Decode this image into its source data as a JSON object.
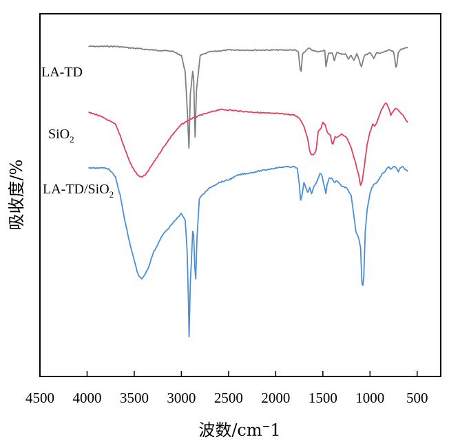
{
  "chart_data": {
    "type": "line",
    "title": "",
    "xlabel": "波数/cm⁻1",
    "ylabel": "吸收度/%",
    "xlim": [
      4500,
      250
    ],
    "x_reversed": true,
    "y_ticks_shown": false,
    "grid": false,
    "legend": "inline labels at left of each curve",
    "xticks": [
      4500,
      4000,
      3500,
      3000,
      2500,
      2000,
      1500,
      1000,
      500
    ],
    "series": [
      {
        "name": "LA-TD",
        "color": "#7f7f7f",
        "points": [
          [
            3985,
            0.91
          ],
          [
            3700,
            0.91
          ],
          [
            3500,
            0.905
          ],
          [
            3300,
            0.9
          ],
          [
            3100,
            0.897
          ],
          [
            3000,
            0.885
          ],
          [
            2960,
            0.84
          ],
          [
            2935,
            0.72
          ],
          [
            2920,
            0.63
          ],
          [
            2905,
            0.78
          ],
          [
            2880,
            0.84
          ],
          [
            2870,
            0.82
          ],
          [
            2855,
            0.66
          ],
          [
            2840,
            0.79
          ],
          [
            2800,
            0.885
          ],
          [
            2700,
            0.895
          ],
          [
            2500,
            0.9
          ],
          [
            2300,
            0.9
          ],
          [
            2100,
            0.9
          ],
          [
            1900,
            0.9
          ],
          [
            1800,
            0.9
          ],
          [
            1760,
            0.895
          ],
          [
            1740,
            0.845
          ],
          [
            1730,
            0.84
          ],
          [
            1715,
            0.89
          ],
          [
            1650,
            0.905
          ],
          [
            1600,
            0.898
          ],
          [
            1550,
            0.895
          ],
          [
            1480,
            0.9
          ],
          [
            1467,
            0.855
          ],
          [
            1440,
            0.89
          ],
          [
            1400,
            0.893
          ],
          [
            1378,
            0.87
          ],
          [
            1350,
            0.895
          ],
          [
            1300,
            0.888
          ],
          [
            1260,
            0.89
          ],
          [
            1230,
            0.875
          ],
          [
            1200,
            0.885
          ],
          [
            1170,
            0.872
          ],
          [
            1140,
            0.89
          ],
          [
            1100,
            0.86
          ],
          [
            1090,
            0.855
          ],
          [
            1060,
            0.885
          ],
          [
            1000,
            0.892
          ],
          [
            960,
            0.878
          ],
          [
            930,
            0.893
          ],
          [
            900,
            0.89
          ],
          [
            800,
            0.9
          ],
          [
            750,
            0.895
          ],
          [
            725,
            0.852
          ],
          [
            715,
            0.858
          ],
          [
            700,
            0.895
          ],
          [
            650,
            0.905
          ],
          [
            600,
            0.908
          ]
        ]
      },
      {
        "name": "SiO2",
        "color": "#e0405a",
        "points": [
          [
            3985,
            0.728
          ],
          [
            3900,
            0.722
          ],
          [
            3800,
            0.71
          ],
          [
            3700,
            0.695
          ],
          [
            3650,
            0.665
          ],
          [
            3600,
            0.628
          ],
          [
            3550,
            0.593
          ],
          [
            3500,
            0.568
          ],
          [
            3450,
            0.552
          ],
          [
            3420,
            0.55
          ],
          [
            3380,
            0.556
          ],
          [
            3300,
            0.588
          ],
          [
            3200,
            0.628
          ],
          [
            3100,
            0.665
          ],
          [
            3000,
            0.695
          ],
          [
            2900,
            0.71
          ],
          [
            2800,
            0.72
          ],
          [
            2700,
            0.728
          ],
          [
            2600,
            0.736
          ],
          [
            2500,
            0.735
          ],
          [
            2400,
            0.732
          ],
          [
            2300,
            0.73
          ],
          [
            2200,
            0.728
          ],
          [
            2100,
            0.726
          ],
          [
            2000,
            0.725
          ],
          [
            1900,
            0.724
          ],
          [
            1800,
            0.72
          ],
          [
            1750,
            0.713
          ],
          [
            1700,
            0.69
          ],
          [
            1660,
            0.655
          ],
          [
            1640,
            0.623
          ],
          [
            1620,
            0.61
          ],
          [
            1600,
            0.612
          ],
          [
            1570,
            0.625
          ],
          [
            1550,
            0.675
          ],
          [
            1520,
            0.685
          ],
          [
            1500,
            0.7
          ],
          [
            1480,
            0.695
          ],
          [
            1450,
            0.673
          ],
          [
            1420,
            0.665
          ],
          [
            1400,
            0.64
          ],
          [
            1390,
            0.643
          ],
          [
            1370,
            0.66
          ],
          [
            1340,
            0.66
          ],
          [
            1300,
            0.668
          ],
          [
            1250,
            0.66
          ],
          [
            1200,
            0.63
          ],
          [
            1150,
            0.585
          ],
          [
            1120,
            0.555
          ],
          [
            1100,
            0.528
          ],
          [
            1085,
            0.535
          ],
          [
            1060,
            0.58
          ],
          [
            1030,
            0.64
          ],
          [
            1000,
            0.675
          ],
          [
            970,
            0.695
          ],
          [
            950,
            0.69
          ],
          [
            930,
            0.7
          ],
          [
            900,
            0.72
          ],
          [
            880,
            0.735
          ],
          [
            850,
            0.75
          ],
          [
            830,
            0.755
          ],
          [
            810,
            0.745
          ],
          [
            790,
            0.73
          ],
          [
            780,
            0.72
          ],
          [
            760,
            0.73
          ],
          [
            730,
            0.738
          ],
          [
            700,
            0.735
          ],
          [
            650,
            0.72
          ],
          [
            600,
            0.7
          ]
        ]
      },
      {
        "name": "LA-TD/SiO2",
        "color": "#4a8fd6",
        "points": [
          [
            3985,
            0.575
          ],
          [
            3800,
            0.575
          ],
          [
            3760,
            0.57
          ],
          [
            3700,
            0.55
          ],
          [
            3650,
            0.5
          ],
          [
            3600,
            0.43
          ],
          [
            3550,
            0.37
          ],
          [
            3500,
            0.32
          ],
          [
            3470,
            0.29
          ],
          [
            3450,
            0.275
          ],
          [
            3420,
            0.27
          ],
          [
            3400,
            0.275
          ],
          [
            3350,
            0.3
          ],
          [
            3300,
            0.34
          ],
          [
            3200,
            0.39
          ],
          [
            3100,
            0.42
          ],
          [
            3000,
            0.45
          ],
          [
            2960,
            0.43
          ],
          [
            2940,
            0.35
          ],
          [
            2925,
            0.2
          ],
          [
            2918,
            0.11
          ],
          [
            2905,
            0.26
          ],
          [
            2880,
            0.4
          ],
          [
            2870,
            0.39
          ],
          [
            2858,
            0.3
          ],
          [
            2848,
            0.27
          ],
          [
            2835,
            0.38
          ],
          [
            2810,
            0.49
          ],
          [
            2780,
            0.5
          ],
          [
            2700,
            0.52
          ],
          [
            2600,
            0.535
          ],
          [
            2500,
            0.542
          ],
          [
            2400,
            0.555
          ],
          [
            2350,
            0.558
          ],
          [
            2300,
            0.56
          ],
          [
            2200,
            0.565
          ],
          [
            2100,
            0.57
          ],
          [
            2000,
            0.575
          ],
          [
            1900,
            0.578
          ],
          [
            1800,
            0.578
          ],
          [
            1770,
            0.572
          ],
          [
            1750,
            0.53
          ],
          [
            1735,
            0.485
          ],
          [
            1720,
            0.5
          ],
          [
            1700,
            0.535
          ],
          [
            1680,
            0.52
          ],
          [
            1660,
            0.508
          ],
          [
            1640,
            0.52
          ],
          [
            1620,
            0.505
          ],
          [
            1600,
            0.52
          ],
          [
            1580,
            0.53
          ],
          [
            1550,
            0.545
          ],
          [
            1530,
            0.56
          ],
          [
            1510,
            0.555
          ],
          [
            1490,
            0.53
          ],
          [
            1468,
            0.505
          ],
          [
            1455,
            0.53
          ],
          [
            1430,
            0.548
          ],
          [
            1400,
            0.545
          ],
          [
            1380,
            0.535
          ],
          [
            1350,
            0.54
          ],
          [
            1300,
            0.525
          ],
          [
            1250,
            0.52
          ],
          [
            1200,
            0.5
          ],
          [
            1170,
            0.44
          ],
          [
            1150,
            0.4
          ],
          [
            1120,
            0.38
          ],
          [
            1100,
            0.355
          ],
          [
            1085,
            0.255
          ],
          [
            1075,
            0.25
          ],
          [
            1065,
            0.28
          ],
          [
            1050,
            0.4
          ],
          [
            1030,
            0.46
          ],
          [
            1000,
            0.505
          ],
          [
            980,
            0.52
          ],
          [
            960,
            0.53
          ],
          [
            930,
            0.535
          ],
          [
            900,
            0.545
          ],
          [
            870,
            0.56
          ],
          [
            840,
            0.565
          ],
          [
            820,
            0.575
          ],
          [
            800,
            0.578
          ],
          [
            780,
            0.57
          ],
          [
            760,
            0.575
          ],
          [
            740,
            0.58
          ],
          [
            720,
            0.573
          ],
          [
            700,
            0.565
          ],
          [
            680,
            0.575
          ],
          [
            650,
            0.578
          ],
          [
            620,
            0.57
          ],
          [
            600,
            0.565
          ]
        ]
      }
    ]
  }
}
